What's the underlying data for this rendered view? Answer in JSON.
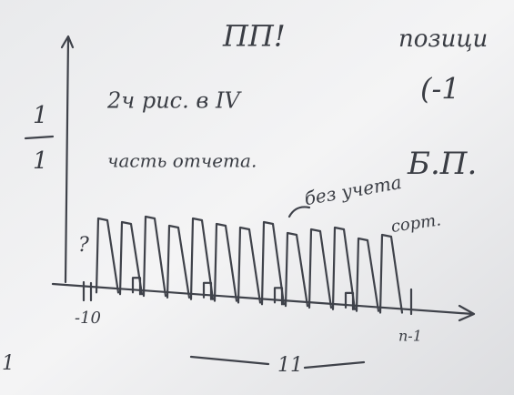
{
  "board": {
    "top_note": "ПП!",
    "top_right": "позици",
    "right_paren": "(-1",
    "line1": "2ч рис. в IV",
    "line2": "часть отчета.",
    "bp": "Б.П.",
    "no_count_1": "без учета",
    "no_count_2": "сорт.",
    "question": "?",
    "axis_start": "-10",
    "axis_end": "n-1",
    "width_label": "11",
    "frac_top": "1",
    "frac_bottom": "1",
    "corner": "1"
  }
}
